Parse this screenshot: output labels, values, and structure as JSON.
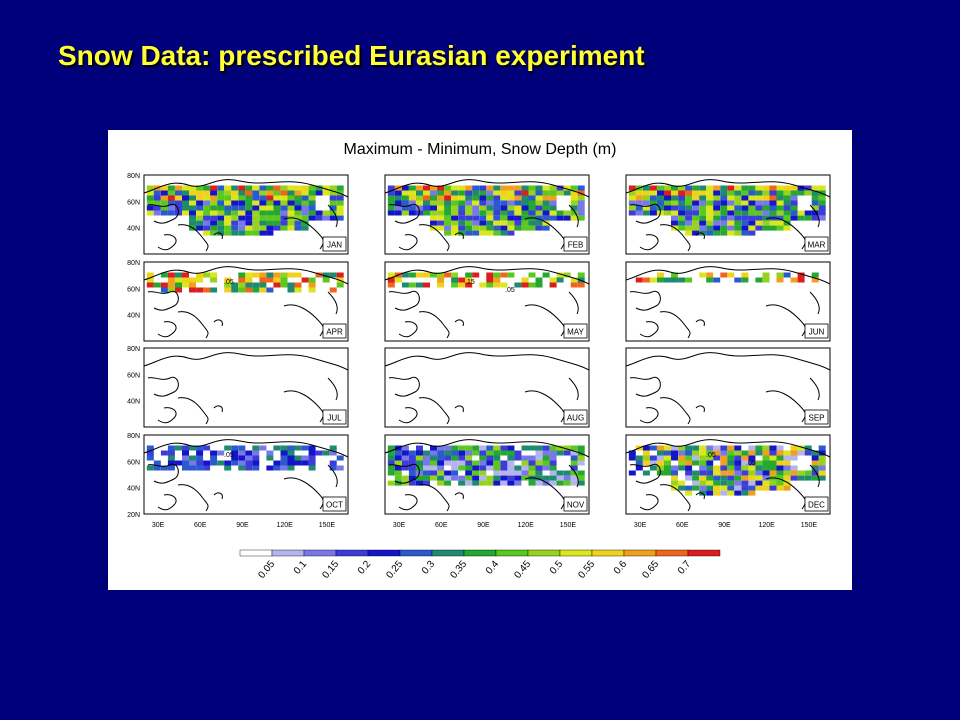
{
  "slide": {
    "title": "Snow Data: prescribed Eurasian experiment"
  },
  "colors": {
    "background": "#00007a",
    "title": "#ffff33",
    "colorbar": [
      "#ffffff",
      "#b4b4f0",
      "#7878e6",
      "#3c3cd8",
      "#1414c8",
      "#2a5acd",
      "#1e8a6e",
      "#26a632",
      "#5ac81e",
      "#96d21e",
      "#dce61e",
      "#f0d21e",
      "#f0a01e",
      "#f0641e",
      "#dc1e1e"
    ]
  },
  "chart_data": {
    "type": "heatmap",
    "title": "Maximum - Minimum, Snow Depth (m)",
    "variable": "Snow Depth (m)",
    "panels": [
      "JAN",
      "FEB",
      "MAR",
      "APR",
      "MAY",
      "JUN",
      "JUL",
      "AUG",
      "SEP",
      "OCT",
      "NOV",
      "DEC"
    ],
    "lat_ticks": [
      "80N",
      "60N",
      "40N",
      "20N"
    ],
    "lon_ticks": [
      "30E",
      "60E",
      "90E",
      "120E",
      "150E"
    ],
    "colorbar_levels": [
      "0.05",
      "0.1",
      "0.15",
      "0.2",
      "0.25",
      "0.3",
      "0.35",
      "0.4",
      "0.45",
      "0.5",
      "0.55",
      "0.6",
      "0.65",
      "0.7"
    ],
    "panel_max_level": {
      "JAN": 14,
      "FEB": 14,
      "MAR": 14,
      "APR": 14,
      "MAY": 14,
      "JUN": 14,
      "JUL": 2,
      "AUG": 2,
      "SEP": 2,
      "OCT": 6,
      "NOV": 9,
      "DEC": 12
    },
    "contour_labels": {
      "APR": [
        ".05"
      ],
      "MAY": [
        ".15",
        ".05"
      ],
      "OCT": [
        ".05"
      ],
      "DEC": [
        ".05",
        ".05"
      ]
    },
    "grid": false,
    "legend": "bottom"
  }
}
